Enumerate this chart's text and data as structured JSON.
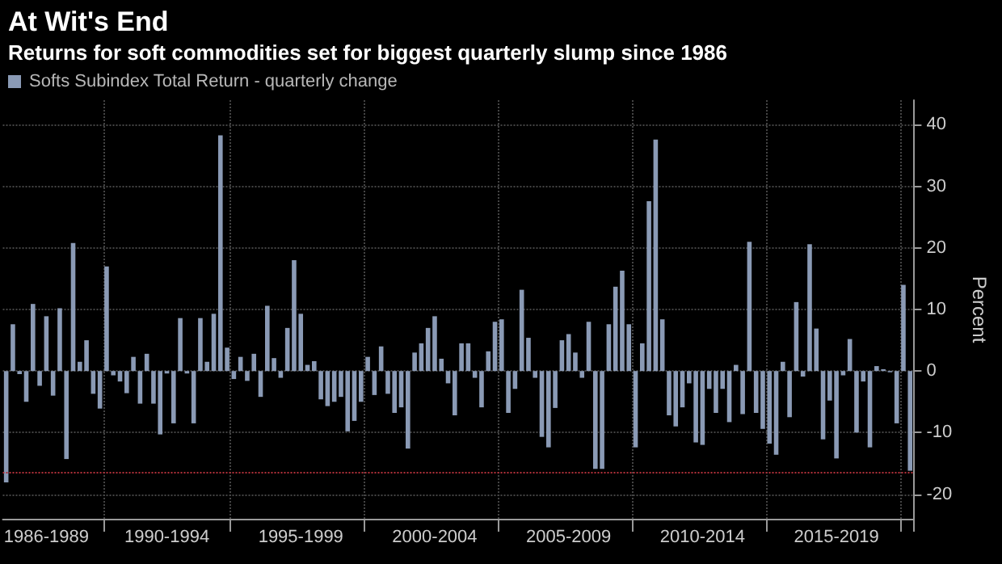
{
  "chart_data": {
    "type": "bar",
    "title": "At Wit's End",
    "subtitle": "Returns for soft commodities set for biggest quarterly slump since 1986",
    "ylabel": "Percent",
    "categories": [
      null,
      null,
      null,
      null,
      null,
      null,
      "1986-1989",
      null,
      null,
      null,
      null,
      null,
      null,
      null,
      null,
      null,
      null,
      null,
      null,
      null,
      null,
      null,
      null,
      null,
      "1990-1994",
      null,
      null,
      null,
      null,
      null,
      null,
      null,
      null,
      null,
      null,
      null,
      null,
      null,
      null,
      null,
      null,
      null,
      null,
      null,
      "1995-1999",
      null,
      null,
      null,
      null,
      null,
      null,
      null,
      null,
      null,
      null,
      null,
      null,
      null,
      null,
      null,
      null,
      null,
      null,
      null,
      "2000-2004",
      null,
      null,
      null,
      null,
      null,
      null,
      null,
      null,
      null,
      null,
      null,
      null,
      null,
      null,
      null,
      null,
      null,
      null,
      null,
      "2005-2009",
      null,
      null,
      null,
      null,
      null,
      null,
      null,
      null,
      null,
      null,
      null,
      null,
      null,
      null,
      null,
      null,
      null,
      null,
      null,
      "2010-2014",
      null,
      null,
      null,
      null,
      null,
      null,
      null,
      null,
      null,
      null,
      null,
      null,
      null,
      null,
      null,
      null,
      null,
      null,
      null,
      "2015-2019",
      null,
      null,
      null,
      null,
      null,
      null,
      null,
      null,
      null,
      null,
      null
    ],
    "series": [
      {
        "name": "Softs Subindex Total Return - quarterly change",
        "color": "#8a9ab5",
        "values": [
          -18.1,
          7.6,
          -0.5,
          -5,
          10.9,
          -2.4,
          8.9,
          -4,
          10.2,
          -14.3,
          20.8,
          1.5,
          5,
          -3.7,
          -6.1,
          17,
          -0.7,
          -1.7,
          -3.6,
          2.3,
          -5.3,
          2.8,
          -5.3,
          -10.3,
          -0.4,
          -8.5,
          8.6,
          -0.4,
          -8.5,
          8.6,
          1.5,
          9.3,
          38.3,
          3.8,
          -1.3,
          2.3,
          -1.6,
          2.8,
          -4.2,
          10.6,
          2.1,
          -1.1,
          7,
          18,
          9.3,
          1,
          1.6,
          -4.6,
          -5.7,
          -5,
          -4.2,
          -9.8,
          -8.1,
          -5,
          2.3,
          -3.9,
          4,
          -3.7,
          -6.8,
          -5.9,
          -12.6,
          3,
          4.5,
          7,
          8.9,
          2,
          -2,
          -7.2,
          4.5,
          4.5,
          -1.1,
          -5.9,
          3.2,
          8,
          8.4,
          -6.8,
          -2.9,
          13.2,
          5.4,
          -1.1,
          -10.7,
          -12.4,
          -6,
          5,
          6,
          3,
          -1.1,
          8,
          -15.9,
          -15.9,
          7.6,
          13.7,
          16.3,
          7.6,
          -12.4,
          4.5,
          27.6,
          37.6,
          8.4,
          -7.2,
          -9,
          -5.9,
          -2,
          -11.6,
          -12,
          -2.9,
          -6.8,
          -2.9,
          -8.3,
          1,
          -7,
          21,
          -6.8,
          -9.4,
          -11.8,
          -13.6,
          1.5,
          -7.5,
          11.2,
          -0.9,
          20.6,
          6.9,
          -11.1,
          -4.8,
          -14.2,
          -0.7,
          5.2,
          -10,
          -1.7,
          -12.4,
          0.8,
          0.3,
          -0.2,
          -8.5,
          14,
          -16.2
        ]
      }
    ],
    "ylim": [
      -24,
      44
    ],
    "yticks": [
      -20,
      -10,
      0,
      10,
      20,
      30,
      40
    ],
    "grid": true,
    "legend": "top left",
    "ref_lines": [
      {
        "axis": "y",
        "value": -16.5,
        "label": null,
        "color": "#b0303a",
        "line_style": "dotted"
      }
    ]
  }
}
